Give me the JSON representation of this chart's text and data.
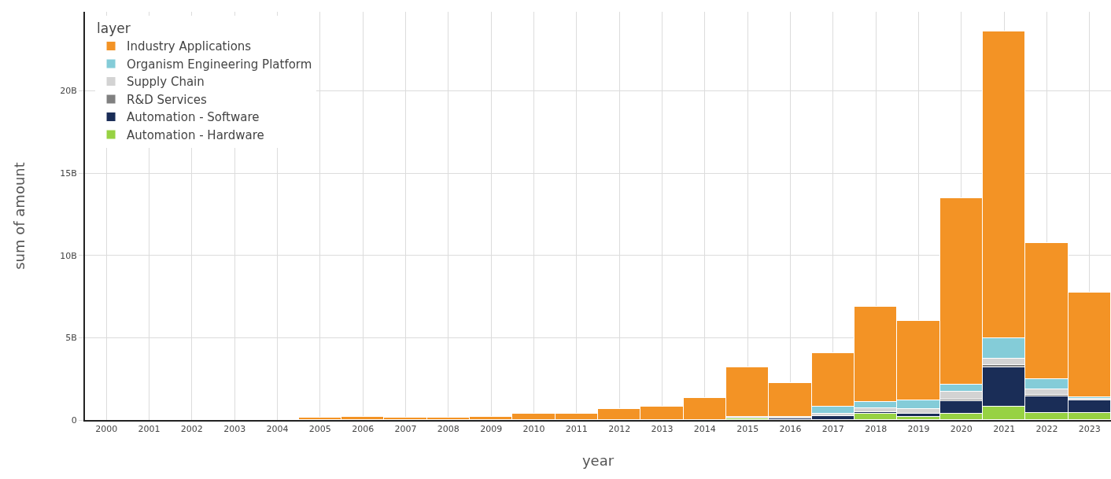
{
  "chart_data": {
    "type": "bar",
    "stacked": true,
    "xlabel": "year",
    "ylabel": "sum of amount",
    "legend_title": "layer",
    "legend": "top left",
    "grid": true,
    "categories": [
      "2000",
      "2001",
      "2002",
      "2003",
      "2004",
      "2005",
      "2006",
      "2007",
      "2008",
      "2009",
      "2010",
      "2011",
      "2012",
      "2013",
      "2014",
      "2015",
      "2016",
      "2017",
      "2018",
      "2019",
      "2020",
      "2021",
      "2022",
      "2023"
    ],
    "ylim": [
      0,
      24800000000.0
    ],
    "yticks": [
      0,
      {
        "value": 5000000000.0,
        "label": "5B"
      },
      {
        "value": 10000000000.0,
        "label": "10B"
      },
      {
        "value": 15000000000.0,
        "label": "15B"
      },
      {
        "value": 20000000000.0,
        "label": "20B"
      }
    ],
    "series": [
      {
        "name": "Automation - Hardware",
        "color": "#97d243",
        "values": [
          null,
          null,
          null,
          null,
          null,
          null,
          null,
          null,
          null,
          null,
          null,
          null,
          null,
          null,
          null,
          80000000.0,
          null,
          null,
          370000000.0,
          200000000.0,
          370000000.0,
          800000000.0,
          450000000.0,
          450000000.0
        ]
      },
      {
        "name": "Automation - Software",
        "color": "#1a2d57",
        "values": [
          null,
          null,
          null,
          null,
          null,
          null,
          null,
          null,
          null,
          null,
          null,
          null,
          null,
          null,
          null,
          null,
          80000000.0,
          250000000.0,
          100000000.0,
          200000000.0,
          800000000.0,
          2400000000.0,
          1000000000.0,
          750000000.0
        ]
      },
      {
        "name": "R&D Services",
        "color": "#808080",
        "values": [
          null,
          null,
          null,
          null,
          null,
          null,
          null,
          null,
          null,
          null,
          null,
          null,
          null,
          null,
          null,
          null,
          null,
          null,
          30000000.0,
          null,
          50000000.0,
          150000000.0,
          100000000.0,
          null
        ]
      },
      {
        "name": "Supply Chain",
        "color": "#d3d3d3",
        "values": [
          null,
          null,
          null,
          null,
          null,
          null,
          null,
          null,
          null,
          null,
          null,
          null,
          null,
          null,
          null,
          100000000.0,
          100000000.0,
          150000000.0,
          200000000.0,
          250000000.0,
          500000000.0,
          400000000.0,
          300000000.0,
          100000000.0
        ]
      },
      {
        "name": "Organism Engineering Platform",
        "color": "#84ccd8",
        "values": [
          null,
          null,
          null,
          null,
          null,
          null,
          null,
          null,
          null,
          null,
          null,
          null,
          null,
          null,
          null,
          null,
          null,
          400000000.0,
          400000000.0,
          550000000.0,
          450000000.0,
          1200000000.0,
          650000000.0,
          100000000.0
        ]
      },
      {
        "name": "Industry Applications",
        "color": "#f39325",
        "values": [
          null,
          null,
          null,
          null,
          null,
          120000000.0,
          200000000.0,
          120000000.0,
          120000000.0,
          200000000.0,
          390000000.0,
          390000000.0,
          650000000.0,
          820000000.0,
          1350000000.0,
          3000000000.0,
          2080000000.0,
          3250000000.0,
          5800000000.0,
          4820000000.0,
          11300000000.0,
          18650000000.0,
          8260000000.0,
          6350000000.0
        ]
      }
    ]
  }
}
